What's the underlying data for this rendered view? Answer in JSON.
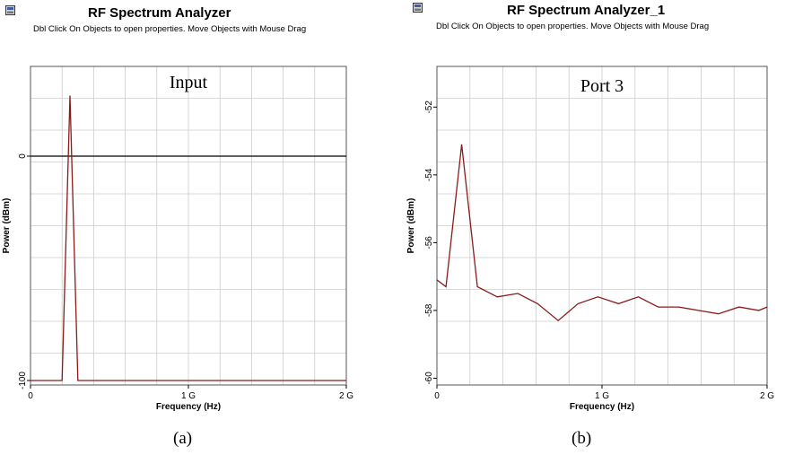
{
  "panels": [
    {
      "title": "RF Spectrum Analyzer",
      "subtitle": "Dbl Click On Objects to open properties.  Move Objects with Mouse Drag",
      "caption": "(a)",
      "icon": "analyzer-window-icon"
    },
    {
      "title": "RF Spectrum Analyzer_1",
      "subtitle": "Dbl Click On Objects to open properties.  Move Objects with Mouse Drag",
      "caption": "(b)",
      "icon": "analyzer-window-icon"
    }
  ],
  "colors": {
    "trace": "#8b1a1a",
    "grid": "#cccccc",
    "frame": "#000000"
  },
  "chart_data": [
    {
      "type": "line",
      "annotation": "Input",
      "xlabel": "Frequency (Hz)",
      "ylabel": "Power (dBm)",
      "xlim": [
        0,
        2000000000
      ],
      "ylim": [
        -102,
        40
      ],
      "x_ticks": [
        0,
        1000000000,
        2000000000
      ],
      "x_tick_labels": [
        "0",
        "1 G",
        "2 G"
      ],
      "y_ticks": [
        0,
        -100
      ],
      "y_tick_labels": [
        "0",
        "-100"
      ],
      "grid": true,
      "reference_line_y": 0,
      "series": [
        {
          "x": [
            0,
            150000000,
            200000000,
            250000000,
            300000000,
            350000000,
            2000000000
          ],
          "y": [
            -100,
            -100,
            -100,
            27,
            -100,
            -100,
            -100
          ]
        }
      ]
    },
    {
      "type": "line",
      "annotation": "Port 3",
      "xlabel": "Frequency (Hz)",
      "ylabel": "Power (dBm)",
      "xlim": [
        0,
        2000000000
      ],
      "ylim": [
        -60.2,
        -50.8
      ],
      "x_ticks": [
        0,
        1000000000,
        2000000000
      ],
      "x_tick_labels": [
        "0",
        "1 G",
        "2 G"
      ],
      "y_ticks": [
        -52,
        -54,
        -56,
        -58,
        -60
      ],
      "y_tick_labels": [
        "-52",
        "-54",
        "-56",
        "-58",
        "-60"
      ],
      "grid": true,
      "series": [
        {
          "x": [
            0,
            55000000,
            150000000,
            245000000,
            365000000,
            490000000,
            610000000,
            735000000,
            855000000,
            975000000,
            1100000000,
            1220000000,
            1340000000,
            1465000000,
            1585000000,
            1705000000,
            1830000000,
            1950000000,
            2000000000
          ],
          "y": [
            -57.1,
            -57.3,
            -53.1,
            -57.3,
            -57.6,
            -57.5,
            -57.8,
            -58.3,
            -57.8,
            -57.6,
            -57.8,
            -57.6,
            -57.9,
            -57.9,
            -58.0,
            -58.1,
            -57.9,
            -58.0,
            -57.9
          ]
        }
      ]
    }
  ]
}
